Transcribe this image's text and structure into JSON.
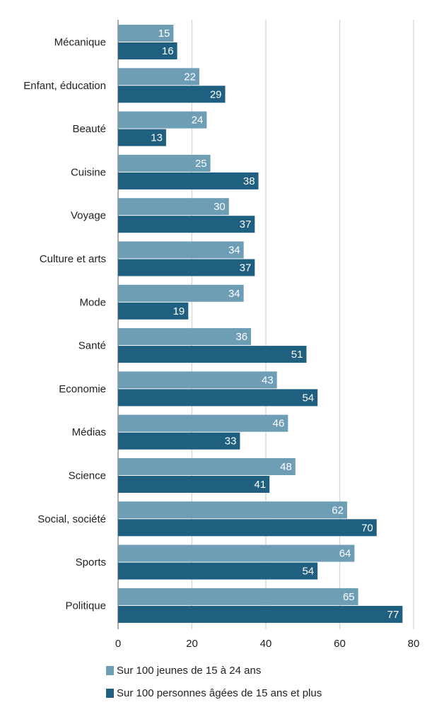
{
  "chart_data": {
    "type": "bar",
    "orientation": "horizontal",
    "categories": [
      "Mécanique",
      "Enfant, éducation",
      "Beauté",
      "Cuisine",
      "Voyage",
      "Culture et arts",
      "Mode",
      "Santé",
      "Economie",
      "Médias",
      "Science",
      "Social, société",
      "Sports",
      "Politique"
    ],
    "series": [
      {
        "name": "Sur 100 jeunes de 15 à 24 ans",
        "color": "#6e9db6",
        "values": [
          15,
          22,
          24,
          25,
          30,
          34,
          34,
          36,
          43,
          46,
          48,
          62,
          64,
          65
        ]
      },
      {
        "name": "Sur 100 personnes âgées de 15 ans et plus",
        "color": "#1f5f80",
        "values": [
          16,
          29,
          13,
          38,
          37,
          37,
          19,
          51,
          54,
          33,
          41,
          70,
          54,
          77
        ]
      }
    ],
    "xlim": [
      0,
      80
    ],
    "xticks": [
      0,
      20,
      40,
      60,
      80
    ],
    "grid": true,
    "data_labels": true,
    "legend_position": "bottom-left"
  }
}
